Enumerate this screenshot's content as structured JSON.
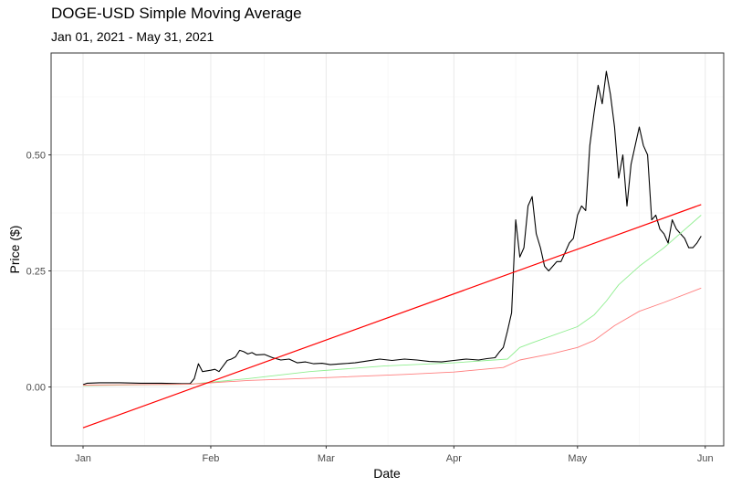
{
  "chart_data": {
    "type": "line",
    "title": "DOGE-USD Simple Moving Average",
    "subtitle": "Jan 01, 2021 - May 31, 2021",
    "xlabel": "Date",
    "ylabel": "Price ($)",
    "x_ticks": [
      "Jan",
      "Feb",
      "Mar",
      "Apr",
      "May",
      "Jun"
    ],
    "y_ticks": [
      "0.00",
      "0.25",
      "0.50"
    ],
    "ylim": [
      -0.13,
      0.7
    ],
    "grid": true,
    "series": [
      {
        "color": "#000000",
        "points": [
          [
            "2021-01-01",
            0.005
          ],
          [
            "2021-01-02",
            0.008
          ],
          [
            "2021-01-05",
            0.009
          ],
          [
            "2021-01-10",
            0.009
          ],
          [
            "2021-01-15",
            0.008
          ],
          [
            "2021-01-20",
            0.008
          ],
          [
            "2021-01-25",
            0.007
          ],
          [
            "2021-01-27",
            0.007
          ],
          [
            "2021-01-28",
            0.018
          ],
          [
            "2021-01-29",
            0.05
          ],
          [
            "2021-01-30",
            0.033
          ],
          [
            "2021-02-01",
            0.036
          ],
          [
            "2021-02-02",
            0.038
          ],
          [
            "2021-02-03",
            0.033
          ],
          [
            "2021-02-04",
            0.045
          ],
          [
            "2021-02-05",
            0.057
          ],
          [
            "2021-02-06",
            0.06
          ],
          [
            "2021-02-07",
            0.065
          ],
          [
            "2021-02-08",
            0.079
          ],
          [
            "2021-02-09",
            0.076
          ],
          [
            "2021-02-10",
            0.071
          ],
          [
            "2021-02-11",
            0.074
          ],
          [
            "2021-02-12",
            0.069
          ],
          [
            "2021-02-14",
            0.07
          ],
          [
            "2021-02-16",
            0.063
          ],
          [
            "2021-02-18",
            0.058
          ],
          [
            "2021-02-20",
            0.06
          ],
          [
            "2021-02-22",
            0.052
          ],
          [
            "2021-02-24",
            0.054
          ],
          [
            "2021-02-26",
            0.05
          ],
          [
            "2021-02-28",
            0.051
          ],
          [
            "2021-03-02",
            0.048
          ],
          [
            "2021-03-05",
            0.05
          ],
          [
            "2021-03-08",
            0.052
          ],
          [
            "2021-03-11",
            0.056
          ],
          [
            "2021-03-14",
            0.06
          ],
          [
            "2021-03-17",
            0.057
          ],
          [
            "2021-03-20",
            0.06
          ],
          [
            "2021-03-23",
            0.058
          ],
          [
            "2021-03-26",
            0.055
          ],
          [
            "2021-03-29",
            0.054
          ],
          [
            "2021-04-01",
            0.057
          ],
          [
            "2021-04-04",
            0.06
          ],
          [
            "2021-04-07",
            0.058
          ],
          [
            "2021-04-09",
            0.061
          ],
          [
            "2021-04-11",
            0.063
          ],
          [
            "2021-04-12",
            0.075
          ],
          [
            "2021-04-13",
            0.085
          ],
          [
            "2021-04-14",
            0.12
          ],
          [
            "2021-04-15",
            0.16
          ],
          [
            "2021-04-16",
            0.36
          ],
          [
            "2021-04-17",
            0.28
          ],
          [
            "2021-04-18",
            0.3
          ],
          [
            "2021-04-19",
            0.39
          ],
          [
            "2021-04-20",
            0.41
          ],
          [
            "2021-04-21",
            0.33
          ],
          [
            "2021-04-22",
            0.3
          ],
          [
            "2021-04-23",
            0.26
          ],
          [
            "2021-04-24",
            0.25
          ],
          [
            "2021-04-25",
            0.26
          ],
          [
            "2021-04-26",
            0.27
          ],
          [
            "2021-04-27",
            0.27
          ],
          [
            "2021-04-28",
            0.29
          ],
          [
            "2021-04-29",
            0.31
          ],
          [
            "2021-04-30",
            0.32
          ],
          [
            "2021-05-01",
            0.37
          ],
          [
            "2021-05-02",
            0.39
          ],
          [
            "2021-05-03",
            0.38
          ],
          [
            "2021-05-04",
            0.52
          ],
          [
            "2021-05-05",
            0.59
          ],
          [
            "2021-05-06",
            0.65
          ],
          [
            "2021-05-07",
            0.61
          ],
          [
            "2021-05-08",
            0.68
          ],
          [
            "2021-05-09",
            0.63
          ],
          [
            "2021-05-10",
            0.56
          ],
          [
            "2021-05-11",
            0.45
          ],
          [
            "2021-05-12",
            0.5
          ],
          [
            "2021-05-13",
            0.39
          ],
          [
            "2021-05-14",
            0.48
          ],
          [
            "2021-05-15",
            0.52
          ],
          [
            "2021-05-16",
            0.56
          ],
          [
            "2021-05-17",
            0.52
          ],
          [
            "2021-05-18",
            0.5
          ],
          [
            "2021-05-19",
            0.36
          ],
          [
            "2021-05-20",
            0.37
          ],
          [
            "2021-05-21",
            0.34
          ],
          [
            "2021-05-22",
            0.33
          ],
          [
            "2021-05-23",
            0.31
          ],
          [
            "2021-05-24",
            0.36
          ],
          [
            "2021-05-25",
            0.34
          ],
          [
            "2021-05-26",
            0.33
          ],
          [
            "2021-05-27",
            0.32
          ],
          [
            "2021-05-28",
            0.3
          ],
          [
            "2021-05-29",
            0.3
          ],
          [
            "2021-05-30",
            0.31
          ],
          [
            "2021-05-31",
            0.325
          ]
        ]
      },
      {
        "color": "#90ee90",
        "points": [
          [
            "2021-01-01",
            0.003
          ],
          [
            "2021-01-27",
            0.006
          ],
          [
            "2021-02-10",
            0.018
          ],
          [
            "2021-02-25",
            0.033
          ],
          [
            "2021-03-15",
            0.045
          ],
          [
            "2021-04-01",
            0.052
          ],
          [
            "2021-04-14",
            0.06
          ],
          [
            "2021-04-17",
            0.085
          ],
          [
            "2021-04-20",
            0.095
          ],
          [
            "2021-05-01",
            0.13
          ],
          [
            "2021-05-05",
            0.155
          ],
          [
            "2021-05-08",
            0.185
          ],
          [
            "2021-05-11",
            0.22
          ],
          [
            "2021-05-16",
            0.26
          ],
          [
            "2021-05-22",
            0.3
          ],
          [
            "2021-05-31",
            0.37
          ]
        ]
      },
      {
        "color": "#ff7f7f",
        "points": [
          [
            "2021-01-01",
            0.004
          ],
          [
            "2021-01-27",
            0.006
          ],
          [
            "2021-02-10",
            0.014
          ],
          [
            "2021-03-01",
            0.02
          ],
          [
            "2021-03-20",
            0.027
          ],
          [
            "2021-04-01",
            0.032
          ],
          [
            "2021-04-13",
            0.042
          ],
          [
            "2021-04-17",
            0.058
          ],
          [
            "2021-04-25",
            0.072
          ],
          [
            "2021-05-01",
            0.085
          ],
          [
            "2021-05-05",
            0.1
          ],
          [
            "2021-05-10",
            0.132
          ],
          [
            "2021-05-16",
            0.163
          ],
          [
            "2021-05-22",
            0.182
          ],
          [
            "2021-05-31",
            0.213
          ]
        ]
      },
      {
        "color": "#ff0000",
        "points": [
          [
            "2021-01-01",
            -0.088
          ],
          [
            "2021-05-31",
            0.393
          ]
        ]
      }
    ]
  }
}
